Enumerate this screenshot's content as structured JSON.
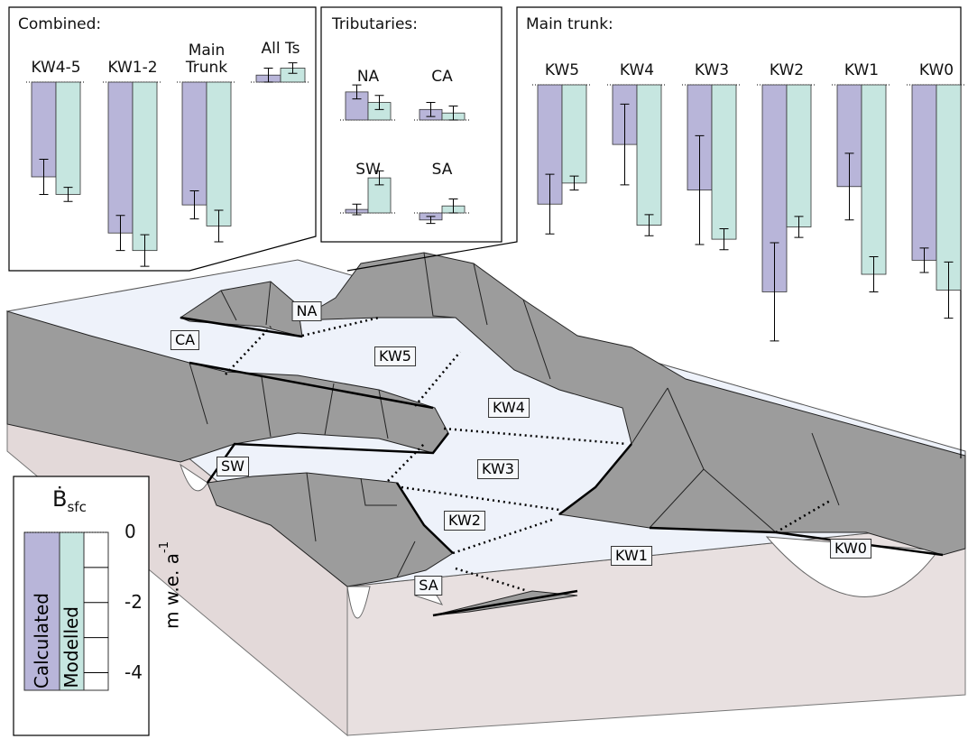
{
  "chart_data": [
    {
      "type": "bar",
      "title": "Combined:",
      "categories": [
        "KW4-5",
        "KW1-2",
        "Main Trunk",
        "All Ts"
      ],
      "series": [
        {
          "values": [
            -2.7,
            -4.3,
            -3.5,
            0.2
          ],
          "errors": [
            0.5,
            0.5,
            0.4,
            0.2
          ]
        },
        {
          "values": [
            -3.2,
            -4.8,
            -4.1,
            0.4
          ],
          "errors": [
            0.2,
            0.45,
            0.45,
            0.15
          ]
        }
      ]
    },
    {
      "type": "bar",
      "title": "Tributaries:",
      "categories": [
        "NA",
        "CA",
        "SW",
        "SA"
      ],
      "series": [
        {
          "values": [
            0.8,
            0.3,
            0.1,
            -0.2
          ],
          "errors": [
            0.2,
            0.2,
            0.15,
            0.1
          ]
        },
        {
          "values": [
            0.5,
            0.2,
            1.0,
            0.2
          ],
          "errors": [
            0.2,
            0.2,
            0.2,
            0.2
          ]
        }
      ]
    },
    {
      "type": "bar",
      "title": "Main trunk:",
      "categories": [
        "KW5",
        "KW4",
        "KW3",
        "KW2",
        "KW1",
        "KW0"
      ],
      "series": [
        {
          "values": [
            -3.4,
            -1.7,
            -3.0,
            -5.9,
            -2.9,
            -5.0
          ],
          "errors": [
            0.85,
            1.15,
            1.55,
            1.4,
            0.95,
            0.35
          ]
        },
        {
          "values": [
            -2.8,
            -4.0,
            -4.4,
            -4.05,
            -5.4,
            -5.85
          ],
          "errors": [
            0.2,
            0.3,
            0.3,
            0.3,
            0.5,
            0.8
          ]
        }
      ]
    }
  ],
  "legend": {
    "symbol": "Ḃ",
    "subscript": "sfc",
    "series": [
      {
        "name": "Calculated",
        "color": "#b8b5d9"
      },
      {
        "name": "Modelled",
        "color": "#c6e6e0"
      }
    ],
    "unit": "m w.e. a",
    "unit_exponent": "-1",
    "ylim": [
      0,
      -4.5
    ],
    "yticks": [
      0,
      -2,
      -4
    ]
  },
  "map": {
    "labels": [
      "NA",
      "CA",
      "KW5",
      "KW4",
      "KW3",
      "KW2",
      "KW1",
      "KW0",
      "SW",
      "SA"
    ]
  }
}
